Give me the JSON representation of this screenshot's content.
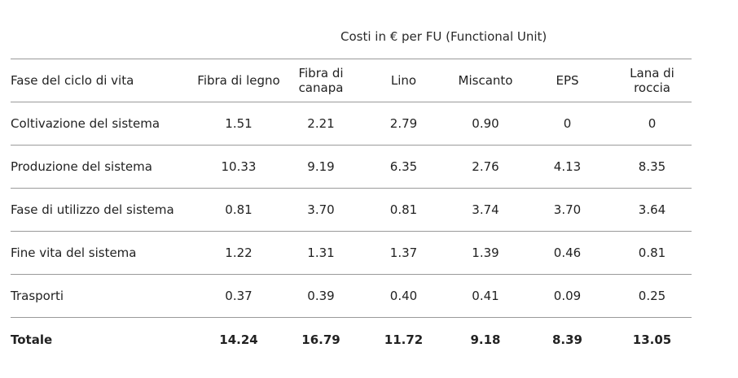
{
  "caption": "Costi in € per FU (Functional Unit)",
  "header": {
    "row_label": "Fase del ciclo di vita",
    "columns": [
      "Fibra di legno",
      "Fibra di canapa",
      "Lino",
      "Miscanto",
      "EPS",
      "Lana di roccia"
    ]
  },
  "rows": [
    {
      "label": "Coltivazione del sistema",
      "values": [
        "1.51",
        "2.21",
        "2.79",
        "0.90",
        "0",
        "0"
      ]
    },
    {
      "label": "Produzione del sistema",
      "values": [
        "10.33",
        "9.19",
        "6.35",
        "2.76",
        "4.13",
        "8.35"
      ]
    },
    {
      "label": "Fase di utilizzo del sistema",
      "values": [
        "0.81",
        "3.70",
        "0.81",
        "3.74",
        "3.70",
        "3.64"
      ]
    },
    {
      "label": "Fine vita del sistema",
      "values": [
        "1.22",
        "1.31",
        "1.37",
        "1.39",
        "0.46",
        "0.81"
      ]
    },
    {
      "label": "Trasporti",
      "values": [
        "0.37",
        "0.39",
        "0.40",
        "0.41",
        "0.09",
        "0.25"
      ]
    }
  ],
  "total": {
    "label": "Totale",
    "values": [
      "14.24",
      "16.79",
      "11.72",
      "9.18",
      "8.39",
      "13.05"
    ]
  }
}
